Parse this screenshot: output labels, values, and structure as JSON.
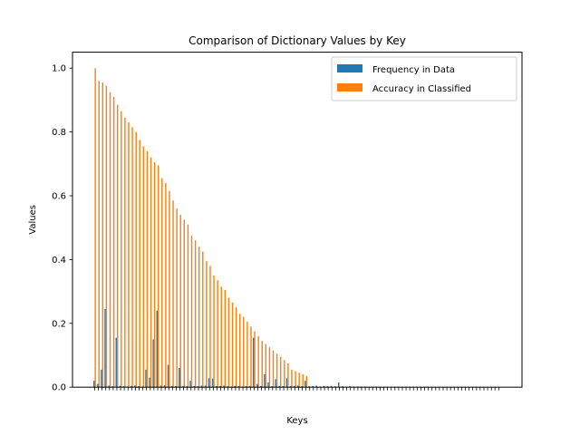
{
  "chart_data": {
    "type": "bar",
    "title": "Comparison of Dictionary Values by Key",
    "xlabel": "Keys",
    "ylabel": "Values",
    "ylim": [
      0,
      1.05
    ],
    "yticks": [
      "0.0",
      "0.2",
      "0.4",
      "0.6",
      "0.8",
      "1.0"
    ],
    "ytick_values": [
      0.0,
      0.2,
      0.4,
      0.6,
      0.8,
      1.0
    ],
    "legend_position": "top-right",
    "grid": false,
    "category_count": 110,
    "series": [
      {
        "name": "Frequency in Data",
        "color": "#1f77b4",
        "values": [
          0.02,
          0.01,
          0.055,
          0.245,
          0.005,
          0.003,
          0.155,
          0.004,
          0.003,
          0.002,
          0.004,
          0.005,
          0.003,
          0.002,
          0.055,
          0.03,
          0.15,
          0.24,
          0.005,
          0.006,
          0.07,
          0.004,
          0.003,
          0.06,
          0.004,
          0.003,
          0.02,
          0.004,
          0.003,
          0.005,
          0.005,
          0.028,
          0.027,
          0.003,
          0.004,
          0.005,
          0.003,
          0.002,
          0.004,
          0.003,
          0.002,
          0.003,
          0.004,
          0.155,
          0.01,
          0.004,
          0.04,
          0.015,
          0.003,
          0.025,
          0.004,
          0.003,
          0.028,
          0.003,
          0.004,
          0.005,
          0.003,
          0.02,
          0.003,
          0.004,
          0.005,
          0.002,
          0.004,
          0.003,
          0.004,
          0.003,
          0.015,
          0.003,
          0.002,
          0.003,
          0.002,
          0.002,
          0.002,
          0.002,
          0.001,
          0.001,
          0.002,
          0.001,
          0.001,
          0.001,
          0.001,
          0.001,
          0.001,
          0.001,
          0.001,
          0.001,
          0.001,
          0.001,
          0.001,
          0.001,
          0.001,
          0.001,
          0.001,
          0.001,
          0.001,
          0.001,
          0.001,
          0.001,
          0.001,
          0.001,
          0.001,
          0.001,
          0.001,
          0.001,
          0.001,
          0.001,
          0.001,
          0.001,
          0.001,
          0.001
        ]
      },
      {
        "name": "Accuracy in Classified",
        "color": "#ff7f0e",
        "values": [
          1.0,
          0.96,
          0.955,
          0.945,
          0.925,
          0.91,
          0.885,
          0.865,
          0.845,
          0.83,
          0.815,
          0.8,
          0.775,
          0.755,
          0.74,
          0.72,
          0.705,
          0.695,
          0.655,
          0.64,
          0.615,
          0.585,
          0.56,
          0.54,
          0.525,
          0.51,
          0.475,
          0.46,
          0.44,
          0.425,
          0.395,
          0.38,
          0.35,
          0.335,
          0.315,
          0.305,
          0.28,
          0.265,
          0.25,
          0.23,
          0.22,
          0.205,
          0.19,
          0.175,
          0.16,
          0.145,
          0.135,
          0.125,
          0.115,
          0.105,
          0.095,
          0.085,
          0.075,
          0.055,
          0.05,
          0.045,
          0.04,
          0.035,
          0,
          0,
          0,
          0,
          0,
          0,
          0,
          0,
          0,
          0,
          0,
          0,
          0,
          0,
          0,
          0,
          0,
          0,
          0,
          0,
          0,
          0,
          0,
          0,
          0,
          0,
          0,
          0,
          0,
          0,
          0,
          0,
          0,
          0,
          0,
          0,
          0,
          0,
          0,
          0,
          0,
          0,
          0,
          0,
          0,
          0,
          0,
          0,
          0,
          0,
          0,
          0
        ]
      }
    ]
  }
}
